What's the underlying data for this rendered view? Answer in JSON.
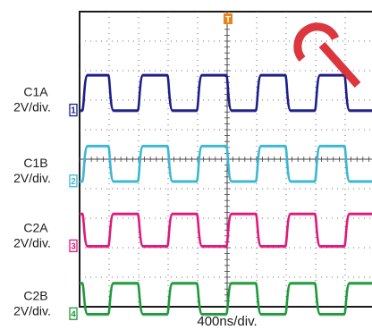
{
  "chart_data": {
    "type": "line",
    "xlabel": "400ns/div.",
    "grid": true,
    "time_divisions": 10,
    "x_range_divisions": [
      0,
      10
    ],
    "trigger_marker": "T",
    "trigger_color": "#e8841a",
    "watermark_color": "#d8202a",
    "series": [
      {
        "name": "C1A",
        "scale": "2V/div.",
        "marker": "1",
        "color": "#1d1f8a",
        "low_div": 3.35,
        "high_div": 2.15,
        "invert": false,
        "edges_div": [
          0.12,
          1.0,
          2.0,
          3.0,
          4.0,
          5.0,
          6.0,
          7.0,
          8.0,
          9.0
        ]
      },
      {
        "name": "C1B",
        "scale": "2V/div.",
        "marker": "2",
        "color": "#3bb7d6",
        "low_div": 5.75,
        "high_div": 4.55,
        "invert": false,
        "edges_div": [
          0.12,
          1.0,
          2.0,
          3.0,
          4.0,
          5.0,
          6.0,
          7.0,
          8.0,
          9.0
        ]
      },
      {
        "name": "C2A",
        "scale": "2V/div.",
        "marker": "3",
        "color": "#e0197c",
        "low_div": 7.95,
        "high_div": 6.85,
        "invert": true,
        "edges_div": [
          0.12,
          1.0,
          2.0,
          3.0,
          4.0,
          5.0,
          6.0,
          7.0,
          8.0,
          9.0
        ]
      },
      {
        "name": "C2B",
        "scale": "2V/div.",
        "marker": "4",
        "color": "#1e9a3a",
        "low_div": 10.25,
        "high_div": 9.2,
        "invert": true,
        "edges_div": [
          0.12,
          1.0,
          2.0,
          3.0,
          4.0,
          5.0,
          6.0,
          7.0,
          8.0,
          9.0
        ]
      }
    ]
  }
}
